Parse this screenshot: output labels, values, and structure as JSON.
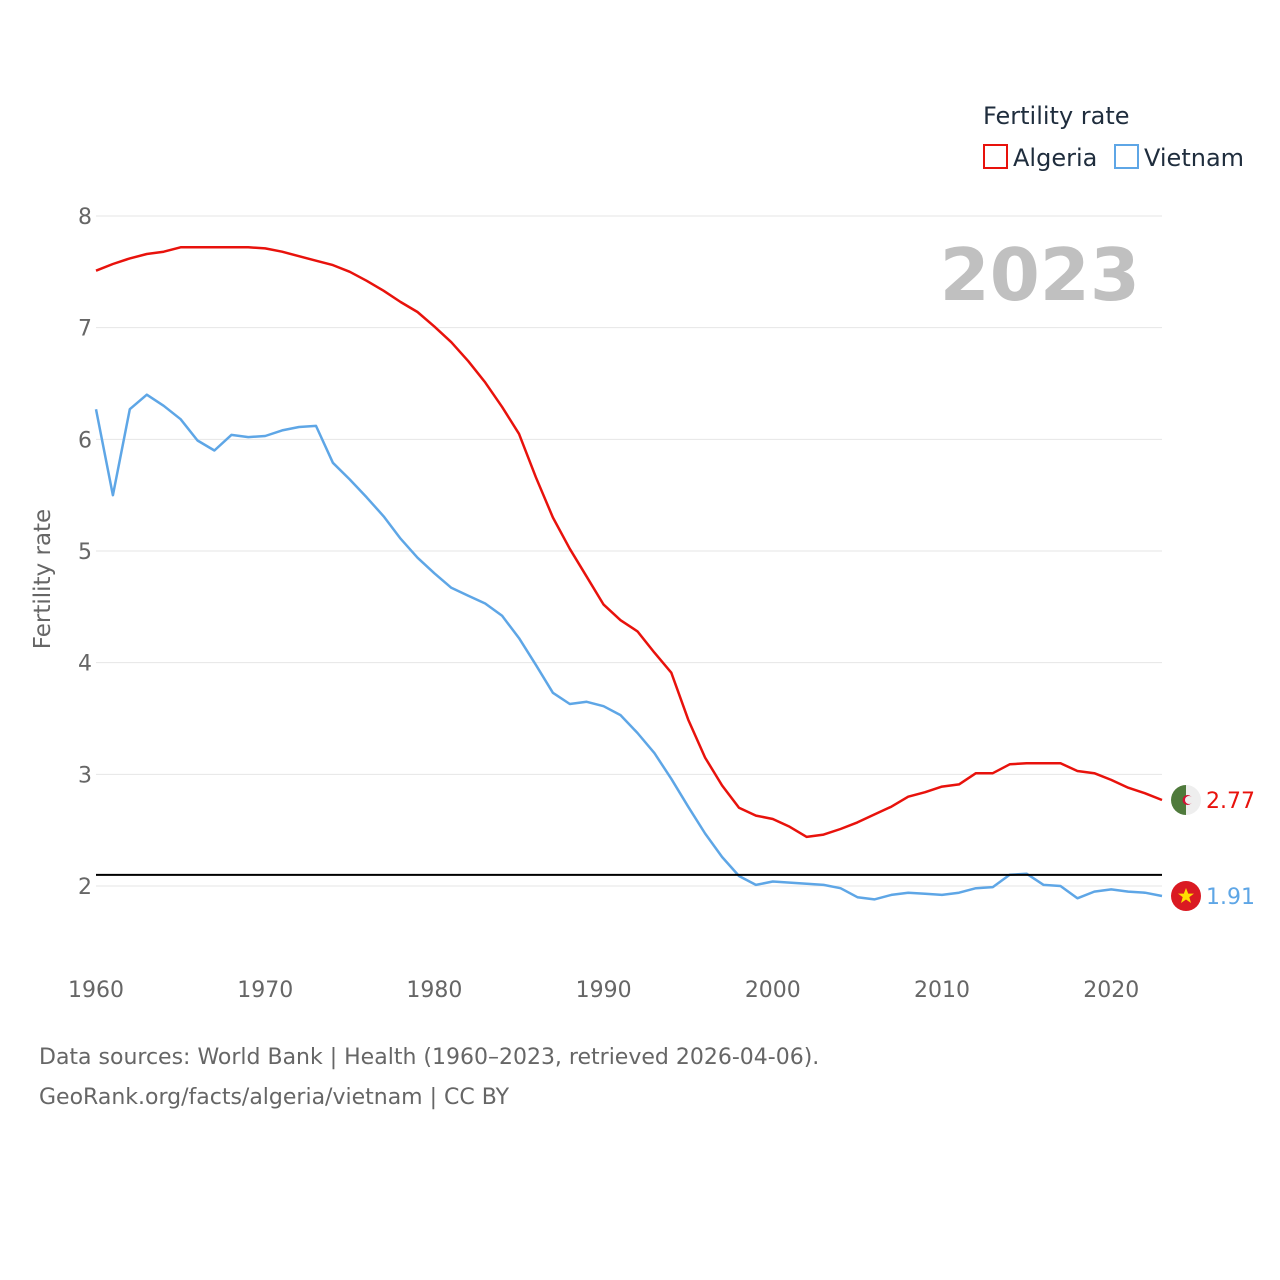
{
  "chart_data": {
    "type": "line",
    "title": "",
    "year_label": "2023",
    "ylabel": "Fertility rate",
    "xlabel": "",
    "ylim": [
      1.4,
      8.0
    ],
    "xlim": [
      1960,
      2023
    ],
    "y_ticks": [
      "2",
      "3",
      "4",
      "5",
      "6",
      "7",
      "8"
    ],
    "x_ticks": [
      "1960",
      "1970",
      "1980",
      "1990",
      "2000",
      "2010",
      "2020"
    ],
    "grid": true,
    "legend": {
      "title": "Fertility rate",
      "position": "top-right",
      "entries": [
        "Algeria",
        "Vietnam"
      ]
    },
    "reference_line": {
      "value": 2.1,
      "color": "#000000"
    },
    "x": [
      1960,
      1961,
      1962,
      1963,
      1964,
      1965,
      1966,
      1967,
      1968,
      1969,
      1970,
      1971,
      1972,
      1973,
      1974,
      1975,
      1976,
      1977,
      1978,
      1979,
      1980,
      1981,
      1982,
      1983,
      1984,
      1985,
      1986,
      1987,
      1988,
      1989,
      1990,
      1991,
      1992,
      1993,
      1994,
      1995,
      1996,
      1997,
      1998,
      1999,
      2000,
      2001,
      2002,
      2003,
      2004,
      2005,
      2006,
      2007,
      2008,
      2009,
      2010,
      2011,
      2012,
      2013,
      2014,
      2015,
      2016,
      2017,
      2018,
      2019,
      2020,
      2021,
      2022,
      2023
    ],
    "series": [
      {
        "name": "Algeria",
        "color": "#e8120c",
        "end_label": "2.77",
        "values": [
          7.51,
          7.57,
          7.62,
          7.66,
          7.68,
          7.72,
          7.72,
          7.72,
          7.72,
          7.72,
          7.71,
          7.68,
          7.64,
          7.6,
          7.56,
          7.5,
          7.42,
          7.33,
          7.23,
          7.14,
          7.01,
          6.87,
          6.7,
          6.51,
          6.29,
          6.05,
          5.66,
          5.3,
          5.02,
          4.77,
          4.52,
          4.38,
          4.28,
          4.09,
          3.91,
          3.49,
          3.15,
          2.9,
          2.7,
          2.63,
          2.6,
          2.53,
          2.44,
          2.46,
          2.51,
          2.57,
          2.64,
          2.71,
          2.8,
          2.84,
          2.89,
          2.91,
          3.01,
          3.01,
          3.09,
          3.1,
          3.1,
          3.1,
          3.03,
          3.01,
          2.95,
          2.88,
          2.83,
          2.77
        ]
      },
      {
        "name": "Vietnam",
        "color": "#5ea6e6",
        "end_label": "1.91",
        "values": [
          6.27,
          5.5,
          6.27,
          6.4,
          6.3,
          6.18,
          5.99,
          5.9,
          6.04,
          6.02,
          6.03,
          6.08,
          6.11,
          6.12,
          5.79,
          5.64,
          5.48,
          5.31,
          5.11,
          4.94,
          4.8,
          4.67,
          4.6,
          4.53,
          4.42,
          4.22,
          3.98,
          3.73,
          3.63,
          3.65,
          3.61,
          3.53,
          3.37,
          3.19,
          2.96,
          2.71,
          2.47,
          2.26,
          2.09,
          2.01,
          2.04,
          2.03,
          2.02,
          2.01,
          1.98,
          1.9,
          1.88,
          1.92,
          1.94,
          1.93,
          1.92,
          1.94,
          1.98,
          1.99,
          2.1,
          2.11,
          2.01,
          2.0,
          1.89,
          1.95,
          1.97,
          1.95,
          1.94,
          1.91
        ]
      }
    ]
  },
  "footer": {
    "line1": "Data sources: World Bank | Health (1960–2023, retrieved 2026-04-06).",
    "line2": "GeoRank.org/facts/algeria/vietnam | CC BY"
  },
  "icons": {
    "algeria": "algeria-flag-icon",
    "vietnam": "vietnam-flag-icon"
  }
}
